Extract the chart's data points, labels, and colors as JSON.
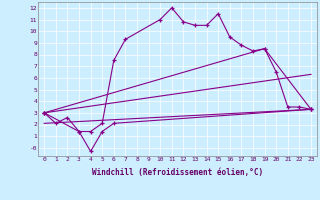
{
  "xlabel": "Windchill (Refroidissement éolien,°C)",
  "bg_color": "#cceeff",
  "line_color": "#880088",
  "xlim": [
    -0.5,
    23.5
  ],
  "ylim": [
    -0.7,
    12.5
  ],
  "xticks": [
    0,
    1,
    2,
    3,
    4,
    5,
    6,
    7,
    8,
    9,
    10,
    11,
    12,
    13,
    14,
    15,
    16,
    17,
    18,
    19,
    20,
    21,
    22,
    23
  ],
  "yticks": [
    0,
    1,
    2,
    3,
    4,
    5,
    6,
    7,
    8,
    9,
    10,
    11,
    12
  ],
  "ytick_labels": [
    "-0",
    "1",
    "2",
    "3",
    "4",
    "5",
    "6",
    "7",
    "8",
    "9",
    "10",
    "11",
    "12"
  ],
  "line1_x": [
    0,
    1,
    2,
    3,
    4,
    5,
    6,
    7,
    10,
    11,
    12,
    13,
    14,
    15,
    16,
    17,
    18,
    19,
    20,
    21,
    22,
    23
  ],
  "line1_y": [
    3.0,
    2.1,
    2.6,
    1.4,
    1.4,
    2.1,
    7.5,
    9.3,
    11.0,
    12.0,
    10.8,
    10.5,
    10.5,
    11.5,
    9.5,
    8.8,
    8.3,
    8.5,
    6.5,
    3.5,
    3.5,
    3.3
  ],
  "line2_x": [
    0,
    3,
    4,
    5,
    6,
    23
  ],
  "line2_y": [
    3.0,
    1.4,
    -0.3,
    1.4,
    2.1,
    3.3
  ],
  "line3_x": [
    0,
    19,
    23
  ],
  "line3_y": [
    3.0,
    8.5,
    3.3
  ],
  "line4_x": [
    0,
    23
  ],
  "line4_y": [
    3.0,
    6.3
  ],
  "line5_x": [
    0,
    23
  ],
  "line5_y": [
    2.1,
    3.3
  ]
}
